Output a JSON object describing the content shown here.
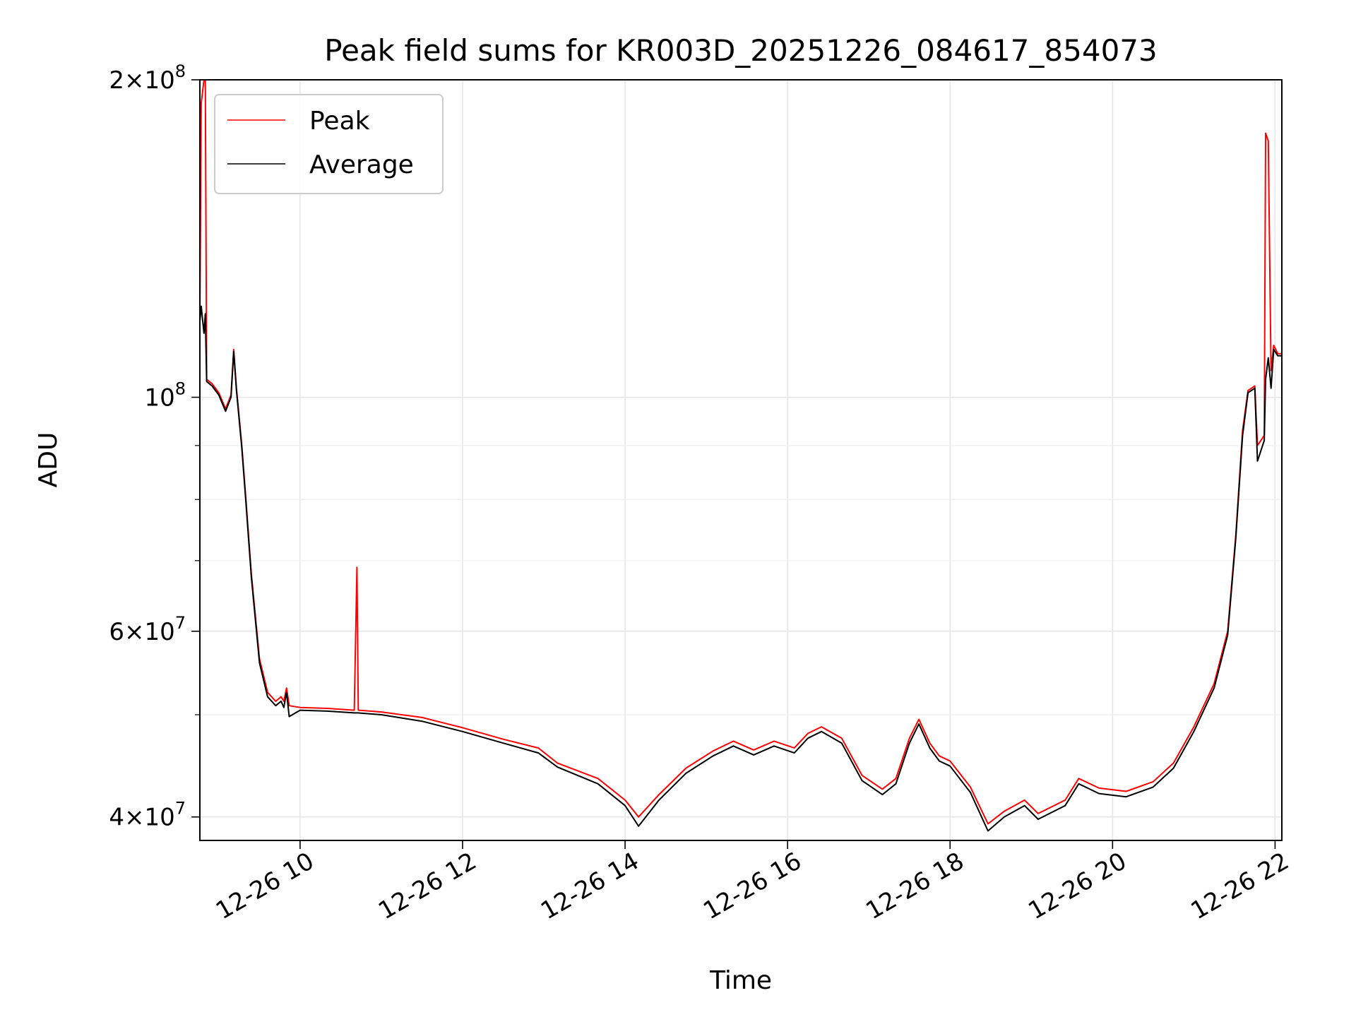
{
  "chart_data": {
    "type": "line",
    "title": "Peak field sums for KR003D_20251226_084617_854073",
    "xlabel": "Time",
    "ylabel": "ADU",
    "y_scale": "log",
    "ylim": [
      38000000,
      200000000
    ],
    "xlim": [
      "2025-12-26 08:46",
      "2025-12-26 22:05"
    ],
    "grid": true,
    "legend_position": "upper-left",
    "x_ticks": [
      {
        "t": "2025-12-26 10:00",
        "label": "12-26 10"
      },
      {
        "t": "2025-12-26 12:00",
        "label": "12-26 12"
      },
      {
        "t": "2025-12-26 14:00",
        "label": "12-26 14"
      },
      {
        "t": "2025-12-26 16:00",
        "label": "12-26 16"
      },
      {
        "t": "2025-12-26 18:00",
        "label": "12-26 18"
      },
      {
        "t": "2025-12-26 20:00",
        "label": "12-26 20"
      },
      {
        "t": "2025-12-26 22:00",
        "label": "12-26 22"
      }
    ],
    "y_ticks": [
      {
        "v": 40000000,
        "base": "4×10",
        "exp": "7"
      },
      {
        "v": 60000000,
        "base": "6×10",
        "exp": "7"
      },
      {
        "v": 100000000,
        "base": "10",
        "exp": "8"
      },
      {
        "v": 200000000,
        "base": "2×10",
        "exp": "8"
      }
    ],
    "y_minor_ticks": [
      50000000,
      70000000,
      80000000,
      90000000
    ],
    "series": [
      {
        "name": "Peak",
        "color": "#ff0000",
        "points": [
          [
            "2025-12-26 08:46",
            120000000
          ],
          [
            "2025-12-26 08:47",
            190000000
          ],
          [
            "2025-12-26 08:49",
            200000000
          ],
          [
            "2025-12-26 08:50",
            200000000
          ],
          [
            "2025-12-26 08:51",
            104000000
          ],
          [
            "2025-12-26 08:55",
            103000000
          ],
          [
            "2025-12-26 09:00",
            101000000
          ],
          [
            "2025-12-26 09:05",
            97500000
          ],
          [
            "2025-12-26 09:09",
            100500000
          ],
          [
            "2025-12-26 09:11",
            111000000
          ],
          [
            "2025-12-26 09:13",
            102000000
          ],
          [
            "2025-12-26 09:17",
            90000000
          ],
          [
            "2025-12-26 09:20",
            80000000
          ],
          [
            "2025-12-26 09:24",
            68000000
          ],
          [
            "2025-12-26 09:30",
            56500000
          ],
          [
            "2025-12-26 09:36",
            52500000
          ],
          [
            "2025-12-26 09:42",
            51500000
          ],
          [
            "2025-12-26 09:46",
            52000000
          ],
          [
            "2025-12-26 09:48",
            51500000
          ],
          [
            "2025-12-26 09:50",
            53000000
          ],
          [
            "2025-12-26 09:52",
            51000000
          ],
          [
            "2025-12-26 10:00",
            50800000
          ],
          [
            "2025-12-26 10:20",
            50700000
          ],
          [
            "2025-12-26 10:40",
            50500000
          ],
          [
            "2025-12-26 10:42",
            69000000
          ],
          [
            "2025-12-26 10:43",
            50500000
          ],
          [
            "2025-12-26 11:00",
            50300000
          ],
          [
            "2025-12-26 11:30",
            49700000
          ],
          [
            "2025-12-26 12:00",
            48600000
          ],
          [
            "2025-12-26 12:30",
            47400000
          ],
          [
            "2025-12-26 12:56",
            46500000
          ],
          [
            "2025-12-26 13:10",
            45000000
          ],
          [
            "2025-12-26 13:40",
            43500000
          ],
          [
            "2025-12-26 14:00",
            41500000
          ],
          [
            "2025-12-26 14:10",
            40000000
          ],
          [
            "2025-12-26 14:25",
            42000000
          ],
          [
            "2025-12-26 14:45",
            44500000
          ],
          [
            "2025-12-26 15:05",
            46200000
          ],
          [
            "2025-12-26 15:20",
            47200000
          ],
          [
            "2025-12-26 15:35",
            46300000
          ],
          [
            "2025-12-26 15:50",
            47200000
          ],
          [
            "2025-12-26 16:05",
            46500000
          ],
          [
            "2025-12-26 16:15",
            48000000
          ],
          [
            "2025-12-26 16:25",
            48700000
          ],
          [
            "2025-12-26 16:40",
            47500000
          ],
          [
            "2025-12-26 16:55",
            43800000
          ],
          [
            "2025-12-26 17:10",
            42500000
          ],
          [
            "2025-12-26 17:20",
            43500000
          ],
          [
            "2025-12-26 17:30",
            47500000
          ],
          [
            "2025-12-26 17:37",
            49500000
          ],
          [
            "2025-12-26 17:45",
            47000000
          ],
          [
            "2025-12-26 17:52",
            45700000
          ],
          [
            "2025-12-26 18:00",
            45200000
          ],
          [
            "2025-12-26 18:15",
            42700000
          ],
          [
            "2025-12-26 18:28",
            39400000
          ],
          [
            "2025-12-26 18:40",
            40500000
          ],
          [
            "2025-12-26 18:55",
            41500000
          ],
          [
            "2025-12-26 19:05",
            40300000
          ],
          [
            "2025-12-26 19:25",
            41500000
          ],
          [
            "2025-12-26 19:35",
            43500000
          ],
          [
            "2025-12-26 19:50",
            42600000
          ],
          [
            "2025-12-26 20:10",
            42300000
          ],
          [
            "2025-12-26 20:30",
            43200000
          ],
          [
            "2025-12-26 20:45",
            45000000
          ],
          [
            "2025-12-26 21:00",
            48700000
          ],
          [
            "2025-12-26 21:15",
            53500000
          ],
          [
            "2025-12-26 21:25",
            60000000
          ],
          [
            "2025-12-26 21:31",
            74000000
          ],
          [
            "2025-12-26 21:36",
            93000000
          ],
          [
            "2025-12-26 21:40",
            101500000
          ],
          [
            "2025-12-26 21:45",
            102500000
          ],
          [
            "2025-12-26 21:47",
            90000000
          ],
          [
            "2025-12-26 21:52",
            92000000
          ],
          [
            "2025-12-26 21:53",
            178000000
          ],
          [
            "2025-12-26 21:55",
            175000000
          ],
          [
            "2025-12-26 21:57",
            106000000
          ],
          [
            "2025-12-26 21:59",
            112000000
          ],
          [
            "2025-12-26 22:02",
            110000000
          ],
          [
            "2025-12-26 22:05",
            110000000
          ]
        ]
      },
      {
        "name": "Average",
        "color": "#000000",
        "points": [
          [
            "2025-12-26 08:46",
            118000000
          ],
          [
            "2025-12-26 08:47",
            122000000
          ],
          [
            "2025-12-26 08:49",
            115000000
          ],
          [
            "2025-12-26 08:50",
            120000000
          ],
          [
            "2025-12-26 08:51",
            103500000
          ],
          [
            "2025-12-26 08:55",
            102500000
          ],
          [
            "2025-12-26 09:00",
            100500000
          ],
          [
            "2025-12-26 09:05",
            97000000
          ],
          [
            "2025-12-26 09:09",
            100000000
          ],
          [
            "2025-12-26 09:11",
            110500000
          ],
          [
            "2025-12-26 09:13",
            101500000
          ],
          [
            "2025-12-26 09:17",
            89500000
          ],
          [
            "2025-12-26 09:20",
            79500000
          ],
          [
            "2025-12-26 09:24",
            67500000
          ],
          [
            "2025-12-26 09:30",
            56000000
          ],
          [
            "2025-12-26 09:36",
            52000000
          ],
          [
            "2025-12-26 09:42",
            51000000
          ],
          [
            "2025-12-26 09:46",
            51500000
          ],
          [
            "2025-12-26 09:48",
            50800000
          ],
          [
            "2025-12-26 09:50",
            52500000
          ],
          [
            "2025-12-26 09:52",
            49800000
          ],
          [
            "2025-12-26 10:00",
            50500000
          ],
          [
            "2025-12-26 10:20",
            50400000
          ],
          [
            "2025-12-26 10:40",
            50200000
          ],
          [
            "2025-12-26 10:42",
            50200000
          ],
          [
            "2025-12-26 10:43",
            50200000
          ],
          [
            "2025-12-26 11:00",
            50000000
          ],
          [
            "2025-12-26 11:30",
            49300000
          ],
          [
            "2025-12-26 12:00",
            48200000
          ],
          [
            "2025-12-26 12:30",
            47000000
          ],
          [
            "2025-12-26 12:56",
            46000000
          ],
          [
            "2025-12-26 13:10",
            44600000
          ],
          [
            "2025-12-26 13:40",
            43000000
          ],
          [
            "2025-12-26 14:00",
            41000000
          ],
          [
            "2025-12-26 14:10",
            39200000
          ],
          [
            "2025-12-26 14:25",
            41500000
          ],
          [
            "2025-12-26 14:45",
            44000000
          ],
          [
            "2025-12-26 15:05",
            45700000
          ],
          [
            "2025-12-26 15:20",
            46700000
          ],
          [
            "2025-12-26 15:35",
            45800000
          ],
          [
            "2025-12-26 15:50",
            46700000
          ],
          [
            "2025-12-26 16:05",
            46000000
          ],
          [
            "2025-12-26 16:15",
            47500000
          ],
          [
            "2025-12-26 16:25",
            48200000
          ],
          [
            "2025-12-26 16:40",
            47000000
          ],
          [
            "2025-12-26 16:55",
            43300000
          ],
          [
            "2025-12-26 17:10",
            42000000
          ],
          [
            "2025-12-26 17:20",
            43000000
          ],
          [
            "2025-12-26 17:30",
            47000000
          ],
          [
            "2025-12-26 17:37",
            49000000
          ],
          [
            "2025-12-26 17:45",
            46500000
          ],
          [
            "2025-12-26 17:52",
            45200000
          ],
          [
            "2025-12-26 18:00",
            44700000
          ],
          [
            "2025-12-26 18:15",
            42200000
          ],
          [
            "2025-12-26 18:28",
            38800000
          ],
          [
            "2025-12-26 18:40",
            40000000
          ],
          [
            "2025-12-26 18:55",
            41000000
          ],
          [
            "2025-12-26 19:05",
            39800000
          ],
          [
            "2025-12-26 19:25",
            41000000
          ],
          [
            "2025-12-26 19:35",
            43000000
          ],
          [
            "2025-12-26 19:50",
            42100000
          ],
          [
            "2025-12-26 20:10",
            41800000
          ],
          [
            "2025-12-26 20:30",
            42700000
          ],
          [
            "2025-12-26 20:45",
            44500000
          ],
          [
            "2025-12-26 21:00",
            48200000
          ],
          [
            "2025-12-26 21:15",
            53000000
          ],
          [
            "2025-12-26 21:25",
            59500000
          ],
          [
            "2025-12-26 21:31",
            73500000
          ],
          [
            "2025-12-26 21:36",
            92000000
          ],
          [
            "2025-12-26 21:40",
            101000000
          ],
          [
            "2025-12-26 21:45",
            102000000
          ],
          [
            "2025-12-26 21:47",
            87000000
          ],
          [
            "2025-12-26 21:52",
            91000000
          ],
          [
            "2025-12-26 21:53",
            104000000
          ],
          [
            "2025-12-26 21:55",
            109000000
          ],
          [
            "2025-12-26 21:57",
            102000000
          ],
          [
            "2025-12-26 21:59",
            111000000
          ],
          [
            "2025-12-26 22:02",
            109500000
          ],
          [
            "2025-12-26 22:05",
            109500000
          ]
        ]
      }
    ]
  }
}
